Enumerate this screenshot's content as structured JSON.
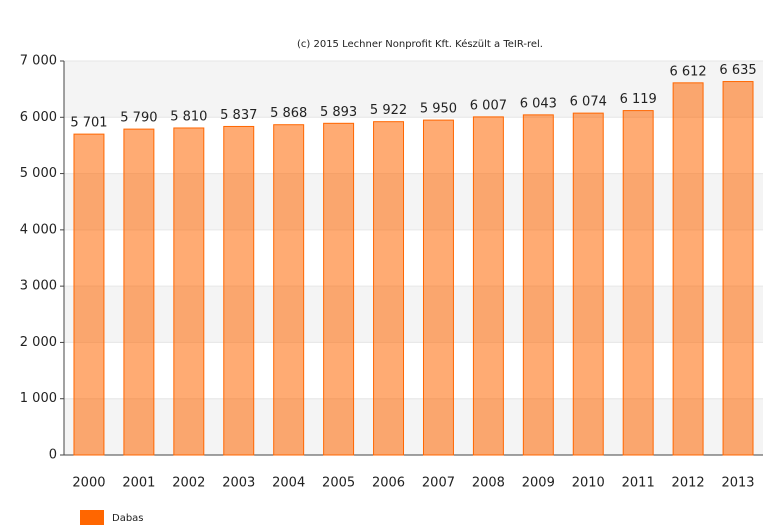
{
  "chart_data": {
    "type": "bar",
    "title": "(c) 2015 Lechner Nonprofit Kft. Készült a TeIR-rel.",
    "categories": [
      "2000",
      "2001",
      "2002",
      "2003",
      "2004",
      "2005",
      "2006",
      "2007",
      "2008",
      "2009",
      "2010",
      "2011",
      "2012",
      "2013"
    ],
    "series": [
      {
        "name": "Dabas",
        "color": "#ff6600",
        "values": [
          5701,
          5790,
          5810,
          5837,
          5868,
          5893,
          5922,
          5950,
          6007,
          6043,
          6074,
          6119,
          6612,
          6635
        ],
        "value_labels": [
          "5 701",
          "5 790",
          "5 810",
          "5 837",
          "5 868",
          "5 893",
          "5 922",
          "5 950",
          "6 007",
          "6 043",
          "6 074",
          "6 119",
          "6 612",
          "6 635"
        ]
      }
    ],
    "ylim": [
      0,
      7000
    ],
    "yticks": [
      0,
      {
        "value": 1000,
        "label": "1 000"
      },
      {
        "value": 2000,
        "label": "2 000"
      },
      {
        "value": 3000,
        "label": "3 000"
      },
      {
        "value": 4000,
        "label": "4 000"
      },
      {
        "value": 5000,
        "label": "5 000"
      },
      {
        "value": 6000,
        "label": "6 000"
      },
      {
        "value": 7000,
        "label": "7 000"
      }
    ],
    "grid": true,
    "legend": "bottom-left"
  }
}
